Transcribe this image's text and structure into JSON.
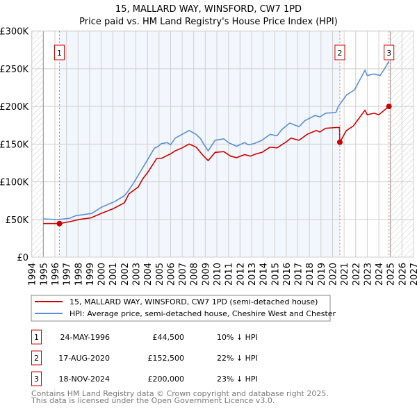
{
  "chart_data": {
    "type": "line",
    "title": "15, MALLARD WAY, WINSFORD, CW7 1PD",
    "subtitle": "Price paid vs. HM Land Registry's House Price Index (HPI)",
    "xlim": [
      1994,
      2027
    ],
    "ylim": [
      0,
      300000
    ],
    "grid": true,
    "x_ticks": [
      "1994",
      "1995",
      "1996",
      "1997",
      "1998",
      "1999",
      "2000",
      "2001",
      "2002",
      "2003",
      "2004",
      "2005",
      "2006",
      "2007",
      "2008",
      "2009",
      "2010",
      "2011",
      "2012",
      "2013",
      "2014",
      "2015",
      "2016",
      "2017",
      "2018",
      "2019",
      "2020",
      "2021",
      "2022",
      "2023",
      "2024",
      "2025",
      "2026",
      "2027"
    ],
    "y_ticks": [
      {
        "v": 0,
        "label": "£0"
      },
      {
        "v": 50000,
        "label": "£50K"
      },
      {
        "v": 100000,
        "label": "£100K"
      },
      {
        "v": 150000,
        "label": "£150K"
      },
      {
        "v": 200000,
        "label": "£200K"
      },
      {
        "v": 250000,
        "label": "£250K"
      },
      {
        "v": 300000,
        "label": "£300K"
      }
    ],
    "series": [
      {
        "name": "15, MALLARD WAY, WINSFORD, CW7 1PD (semi-detached house)",
        "color": "#cc0000",
        "x": [
          1995,
          1996.39,
          1997.3,
          1998.1,
          1999.1,
          2000,
          2001,
          2002,
          2002.4,
          2003.2,
          2003.6,
          2004,
          2004.8,
          2005.2,
          2006,
          2006.4,
          2007,
          2007.6,
          2008.2,
          2008.8,
          2009.25,
          2009.85,
          2010.6,
          2011.2,
          2011.7,
          2012.4,
          2012.9,
          2013.4,
          2013.9,
          2014.6,
          2015.2,
          2016,
          2016.4,
          2017.1,
          2017.8,
          2018.6,
          2018.9,
          2019.4,
          2020.3,
          2020.6,
          2020.63,
          2021.2,
          2021.8,
          2022.8,
          2023,
          2023.6,
          2024,
          2024.88
        ],
        "y": [
          44500,
          44500,
          47000,
          50000,
          52000,
          58000,
          64000,
          72000,
          84000,
          93000,
          104000,
          112000,
          131000,
          131000,
          137000,
          141000,
          145000,
          150000,
          146000,
          135000,
          128000,
          139000,
          140000,
          134000,
          132000,
          136000,
          134000,
          137000,
          139000,
          146000,
          145000,
          153000,
          158000,
          155000,
          163000,
          168000,
          166000,
          171000,
          172000,
          172000,
          152500,
          168000,
          174000,
          195000,
          189000,
          191000,
          189000,
          200000
        ]
      },
      {
        "name": "HPI: Average price, semi-detached house, Cheshire West and Chester",
        "color": "#5b8fd4",
        "x": [
          1995,
          1996.3,
          1997.3,
          1997.8,
          1999.2,
          2000,
          2001.2,
          2002,
          2002.3,
          2002.8,
          2003.4,
          2004,
          2004.6,
          2004.9,
          2005.2,
          2005.7,
          2006,
          2006.4,
          2007,
          2007.6,
          2008.2,
          2008.6,
          2008.9,
          2009.25,
          2009.85,
          2010.6,
          2011,
          2011.7,
          2012.4,
          2012.7,
          2013.2,
          2013.9,
          2014.6,
          2015.2,
          2015.6,
          2016.3,
          2017.1,
          2017.6,
          2018.5,
          2018.9,
          2019.4,
          2020.3,
          2020.5,
          2021.2,
          2021.9,
          2022.8,
          2023,
          2023.6,
          2024.1,
          2024.5,
          2024.88
        ],
        "y": [
          50700,
          49800,
          51600,
          55000,
          58000,
          66000,
          74000,
          81500,
          87000,
          98400,
          113800,
          129000,
          144500,
          146700,
          150500,
          152000,
          149000,
          158000,
          163000,
          168000,
          163000,
          157000,
          149000,
          141000,
          155000,
          157000,
          152000,
          147000,
          152000,
          149000,
          150500,
          155000,
          163000,
          161000,
          169000,
          178000,
          173000,
          181000,
          188000,
          186000,
          191000,
          192000,
          200000,
          215000,
          222000,
          248000,
          241000,
          243000,
          241000,
          250000,
          260000
        ]
      }
    ],
    "sales": [
      {
        "num": "1",
        "x": 1996.39,
        "date": "24-MAY-1996",
        "price": "£44,500",
        "value": 44500,
        "hpi": "10% ↓ HPI"
      },
      {
        "num": "2",
        "x": 2020.63,
        "date": "17-AUG-2020",
        "price": "£152,500",
        "value": 152500,
        "hpi": "22% ↓ HPI"
      },
      {
        "num": "3",
        "x": 2024.88,
        "date": "18-NOV-2024",
        "price": "£200,000",
        "value": 200000,
        "hpi": "23% ↓ HPI"
      }
    ],
    "footer": [
      "Contains HM Land Registry data © Crown copyright and database right 2025.",
      "This data is licensed under the Open Government Licence v3.0."
    ]
  }
}
